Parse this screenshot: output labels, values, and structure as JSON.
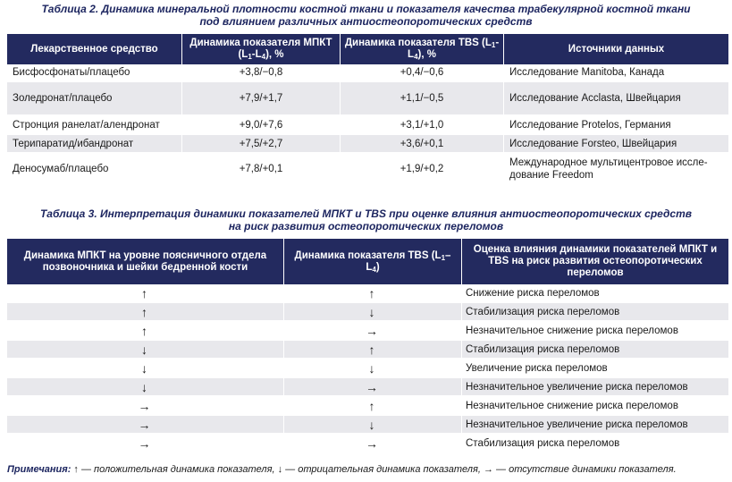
{
  "table2": {
    "caption_line1": "Таблица 2.  Динамика минеральной плотности костной ткани и показателя качества трабекулярной костной ткани",
    "caption_line2": "под влиянием различных антиостеопоротических средств",
    "headers": {
      "drug": "Лекарственное средство",
      "mpkt_pre": "Динамика показателя МПКТ (L",
      "mpkt_sub1": "1",
      "mpkt_mid": "-L",
      "mpkt_sub4": "4",
      "mpkt_post": "), %",
      "tbs_pre": "Динамика показателя TBS (L",
      "tbs_sub1": "1",
      "tbs_mid": "-L",
      "tbs_sub4": "4",
      "tbs_post": "), %",
      "source": "Источники данных"
    },
    "rows": [
      {
        "drug": "Бисфосфонаты/плацебо",
        "mpkt": "+3,8/−0,8",
        "tbs": "+0,4/−0,6",
        "source": "Исследование Manitoba, Канада"
      },
      {
        "drug": "Золедронат/плацебо",
        "mpkt": "+7,9/+1,7",
        "tbs": "+1,1/−0,5",
        "source": "Исследование Acclasta, Швейцария"
      },
      {
        "drug": "Стронция ранелат/алендронат",
        "mpkt": "+9,0/+7,6",
        "tbs": "+3,1/+1,0",
        "source": "Исследование Protelos, Германия"
      },
      {
        "drug": "Терипаратид/ибандронат",
        "mpkt": "+7,5/+2,7",
        "tbs": "+3,6/+0,1",
        "source": "Исследование Forsteo, Швейцария"
      },
      {
        "drug": "Деносумаб/плацебо",
        "mpkt": "+7,8/+0,1",
        "tbs": "+1,9/+0,2",
        "source": "Международное мультицентровое иссле-дование Freedom"
      }
    ]
  },
  "table3": {
    "caption_line1": "Таблица 3.  Интерпретация динамики показателей МПКТ и TBS при оценке влияния антиостеопоротических средств",
    "caption_line2": "на риск развития остеопоротических переломов",
    "headers": {
      "mpkt": "Динамика МПКТ на уровне поясничного отдела позвоночника и шейки бедренной кости",
      "tbs_pre": "Динамика показателя TBS (L",
      "tbs_sub1": "1",
      "tbs_mid": "–L",
      "tbs_sub4": "4",
      "tbs_post": ")",
      "assessment": "Оценка влияния динамики показателей МПКТ и TBS на риск развития остеопоротических переломов"
    },
    "rows": [
      {
        "mpkt": "↑",
        "tbs": "↑",
        "assessment": "Снижение риска переломов"
      },
      {
        "mpkt": "↑",
        "tbs": "↓",
        "assessment": "Стабилизация риска переломов"
      },
      {
        "mpkt": "↑",
        "tbs": "→",
        "assessment": "Незначительное снижение риска переломов"
      },
      {
        "mpkt": "↓",
        "tbs": "↑",
        "assessment": "Стабилизация риска переломов"
      },
      {
        "mpkt": "↓",
        "tbs": "↓",
        "assessment": "Увеличение риска переломов"
      },
      {
        "mpkt": "↓",
        "tbs": "→",
        "assessment": "Незначительное увеличение риска переломов"
      },
      {
        "mpkt": "→",
        "tbs": "↑",
        "assessment": "Незначительное снижение риска переломов"
      },
      {
        "mpkt": "→",
        "tbs": "↓",
        "assessment": "Незначительное увеличение риска переломов"
      },
      {
        "mpkt": "→",
        "tbs": "→",
        "assessment": "Стабилизация риска переломов"
      }
    ]
  },
  "note": {
    "label": "Примечания:",
    "text": " ↑ — положительная динамика показателя, ↓ — отрицательная динамика показателя, → — отсутствие динамики показателя."
  },
  "colors": {
    "header_bg": "#232a5f",
    "caption_text": "#1d2660",
    "row_alt_bg": "#e8e8ec"
  }
}
